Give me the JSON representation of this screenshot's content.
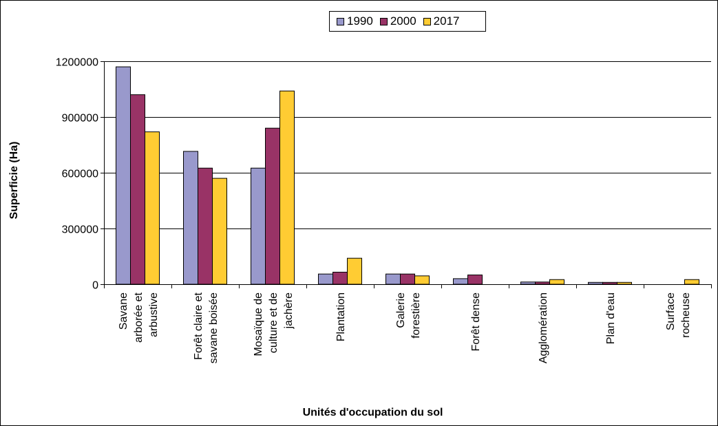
{
  "chart_data": {
    "type": "bar",
    "categories": [
      [
        "Savane",
        "arborée et",
        "arbustive"
      ],
      [
        "Forêt claire et",
        "savane boisée"
      ],
      [
        "Mosaïque de",
        "culture et de",
        "jachère"
      ],
      [
        "Plantation"
      ],
      [
        "Galerie",
        "forestière"
      ],
      [
        "Forêt dense"
      ],
      [
        "Agglomération"
      ],
      [
        "Plan d'eau"
      ],
      [
        "Surface",
        "rocheuse"
      ]
    ],
    "series": [
      {
        "name": "1990",
        "color": "#9999cc",
        "values": [
          1170000,
          715000,
          625000,
          55000,
          55000,
          30000,
          12000,
          10000,
          0
        ]
      },
      {
        "name": "2000",
        "color": "#993366",
        "values": [
          1020000,
          625000,
          840000,
          65000,
          55000,
          50000,
          12000,
          10000,
          0
        ]
      },
      {
        "name": "2017",
        "color": "#ffcc33",
        "values": [
          820000,
          570000,
          1040000,
          140000,
          45000,
          0,
          25000,
          10000,
          25000
        ]
      }
    ],
    "yticks": [
      "0",
      "300000",
      "600000",
      "900000",
      "1200000"
    ],
    "ylim": [
      0,
      1200000
    ],
    "ylabel": "Superficie (Ha)",
    "xlabel": "Unités d'occupation du sol",
    "grid": true,
    "legend": "top"
  }
}
